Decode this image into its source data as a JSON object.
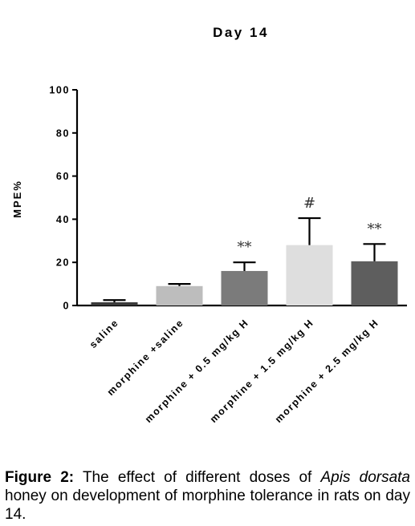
{
  "chart_data": {
    "type": "bar",
    "title": "Day 14",
    "ylabel": "MPE%",
    "xlabel": "",
    "ylim": [
      0,
      100
    ],
    "yticks": [
      0,
      20,
      40,
      60,
      80,
      100
    ],
    "categories": [
      "saline",
      "morphine +saline",
      "morphine + 0.5 mg/kg H",
      "morphine + 1.5 mg/kg H",
      "morphine + 2.5 mg/kg H"
    ],
    "values": [
      1.5,
      9,
      16,
      28,
      20.5
    ],
    "errors": [
      1,
      1,
      4,
      12.5,
      8
    ],
    "annotations": [
      "",
      "",
      "**",
      "#",
      "**"
    ],
    "bar_colors": [
      "#3a3a3a",
      "#bdbdbd",
      "#7b7b7b",
      "#dedede",
      "#5e5e5e"
    ],
    "grid": false,
    "legend": "none"
  },
  "caption": {
    "label": "Figure 2:",
    "text_before": " The effect of different doses of ",
    "species": "Apis dorsata",
    "text_after": " honey on development of morphine tolerance in rats on day 14."
  }
}
